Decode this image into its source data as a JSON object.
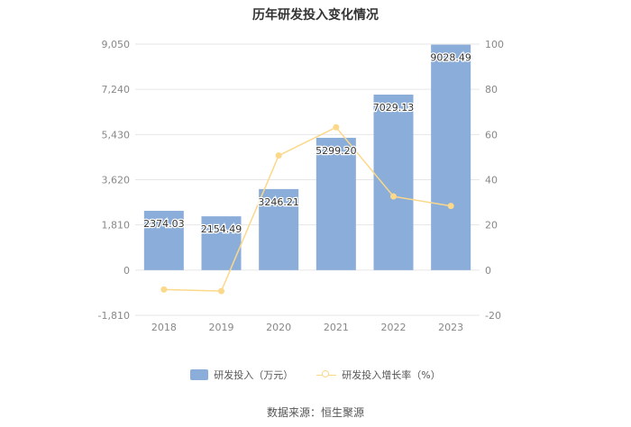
{
  "chart_data": {
    "type": "bar",
    "title": "历年研发投入变化情况",
    "categories": [
      "2018",
      "2019",
      "2020",
      "2021",
      "2022",
      "2023"
    ],
    "series": [
      {
        "name": "研发投入（万元）",
        "type": "bar",
        "axis": "left",
        "values": [
          2374.03,
          2154.49,
          3246.21,
          5299.2,
          7029.13,
          9028.49
        ],
        "labels": [
          "2374.03",
          "2154.49",
          "3246.21",
          "5299.20",
          "7029.13",
          "9028.49"
        ]
      },
      {
        "name": "研发投入增长率（%）",
        "type": "line",
        "axis": "right",
        "values": [
          -8.6,
          -9.3,
          50.7,
          63.2,
          32.6,
          28.4
        ]
      }
    ],
    "y_left": {
      "ylim": [
        -1810,
        9050
      ],
      "ticks": [
        "-1,810",
        "0",
        "1,810",
        "3,620",
        "5,430",
        "7,240",
        "9,050"
      ]
    },
    "y_right": {
      "ylim": [
        -20,
        100
      ],
      "ticks": [
        "-20",
        "0",
        "20",
        "40",
        "60",
        "80",
        "100"
      ]
    },
    "grid": true,
    "legend_position": "bottom"
  },
  "colors": {
    "bar": "#8badd9",
    "line": "#fbd88a",
    "grid": "#e6e6e6",
    "axis_text": "#888888"
  },
  "source": "数据来源：恒生聚源"
}
